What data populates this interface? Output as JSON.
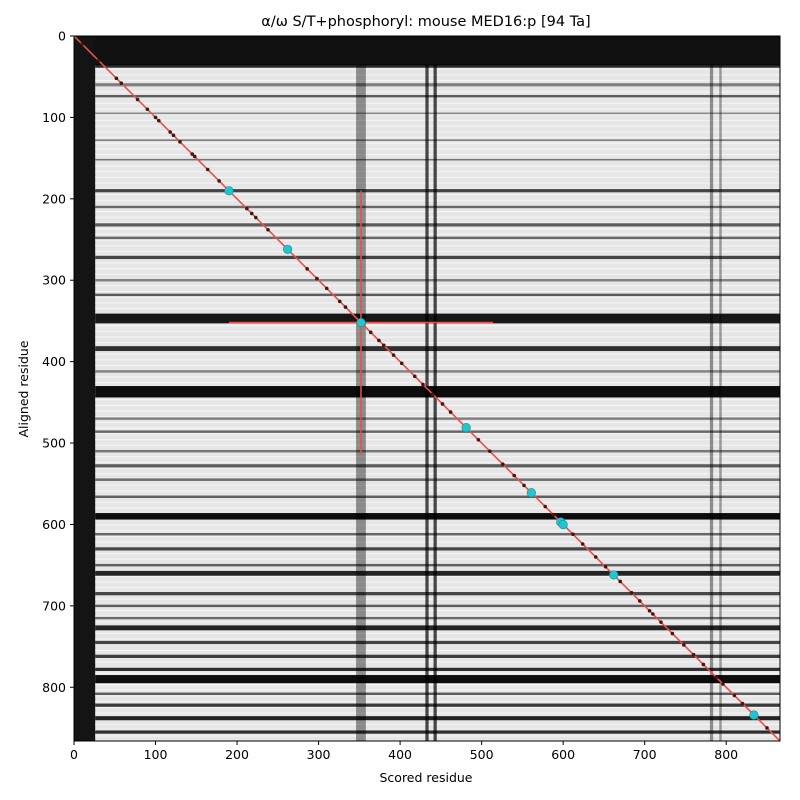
{
  "chart_data": {
    "type": "heatmap",
    "title": "α/ω S/T+phosphoryl: mouse MED16:p [94 Ta]",
    "xlabel": "Scored residue",
    "ylabel": "Aligned residue",
    "xlim": [
      0,
      866
    ],
    "ylim": [
      866,
      0
    ],
    "x_ticks": [
      0,
      100,
      200,
      300,
      400,
      500,
      600,
      700,
      800
    ],
    "y_ticks": [
      0,
      100,
      200,
      300,
      400,
      500,
      600,
      700,
      800
    ],
    "grid": false,
    "colormap": "greys (white = high score, black = low score)",
    "dark_rows": [
      {
        "y": 37,
        "w": 4,
        "s": 0.8
      },
      {
        "y": 60,
        "w": 4,
        "s": 0.45
      },
      {
        "y": 74,
        "w": 3,
        "s": 0.6
      },
      {
        "y": 95,
        "w": 2,
        "s": 0.4
      },
      {
        "y": 128,
        "w": 2,
        "s": 0.45
      },
      {
        "y": 152,
        "w": 2,
        "s": 0.5
      },
      {
        "y": 190,
        "w": 4,
        "s": 0.7
      },
      {
        "y": 210,
        "w": 3,
        "s": 0.55
      },
      {
        "y": 232,
        "w": 4,
        "s": 0.6
      },
      {
        "y": 248,
        "w": 3,
        "s": 0.55
      },
      {
        "y": 272,
        "w": 4,
        "s": 0.7
      },
      {
        "y": 300,
        "w": 3,
        "s": 0.45
      },
      {
        "y": 318,
        "w": 3,
        "s": 0.6
      },
      {
        "y": 347,
        "w": 12,
        "s": 0.9
      },
      {
        "y": 384,
        "w": 6,
        "s": 0.8
      },
      {
        "y": 412,
        "w": 3,
        "s": 0.45
      },
      {
        "y": 437,
        "w": 14,
        "s": 0.95
      },
      {
        "y": 470,
        "w": 3,
        "s": 0.45
      },
      {
        "y": 486,
        "w": 3,
        "s": 0.55
      },
      {
        "y": 510,
        "w": 3,
        "s": 0.5
      },
      {
        "y": 528,
        "w": 4,
        "s": 0.6
      },
      {
        "y": 545,
        "w": 3,
        "s": 0.55
      },
      {
        "y": 566,
        "w": 3,
        "s": 0.6
      },
      {
        "y": 590,
        "w": 8,
        "s": 0.95
      },
      {
        "y": 612,
        "w": 3,
        "s": 0.55
      },
      {
        "y": 630,
        "w": 4,
        "s": 0.7
      },
      {
        "y": 650,
        "w": 3,
        "s": 0.6
      },
      {
        "y": 660,
        "w": 6,
        "s": 0.85
      },
      {
        "y": 685,
        "w": 4,
        "s": 0.7
      },
      {
        "y": 700,
        "w": 3,
        "s": 0.6
      },
      {
        "y": 715,
        "w": 3,
        "s": 0.55
      },
      {
        "y": 727,
        "w": 6,
        "s": 0.85
      },
      {
        "y": 745,
        "w": 4,
        "s": 0.7
      },
      {
        "y": 762,
        "w": 4,
        "s": 0.75
      },
      {
        "y": 778,
        "w": 4,
        "s": 0.8
      },
      {
        "y": 790,
        "w": 10,
        "s": 0.95
      },
      {
        "y": 808,
        "w": 3,
        "s": 0.6
      },
      {
        "y": 822,
        "w": 4,
        "s": 0.75
      },
      {
        "y": 838,
        "w": 5,
        "s": 0.85
      },
      {
        "y": 855,
        "w": 4,
        "s": 0.8
      }
    ],
    "dark_cols": [
      {
        "x": 352,
        "w": 12,
        "s": 0.4
      },
      {
        "x": 433,
        "w": 4,
        "s": 0.7
      },
      {
        "x": 443,
        "w": 4,
        "s": 0.7
      },
      {
        "x": 782,
        "w": 4,
        "s": 0.4
      },
      {
        "x": 793,
        "w": 3,
        "s": 0.35
      }
    ],
    "diagonal_markers": [
      10,
      30,
      52,
      58,
      78,
      90,
      100,
      104,
      118,
      122,
      130,
      145,
      148,
      164,
      178,
      212,
      218,
      223,
      238,
      286,
      298,
      310,
      326,
      333,
      364,
      374,
      380,
      392,
      402,
      418,
      428,
      440,
      452,
      462,
      496,
      510,
      526,
      540,
      552,
      578,
      588,
      612,
      624,
      640,
      652,
      670,
      684,
      694,
      706,
      710,
      720,
      734,
      748,
      760,
      772,
      788,
      796,
      810,
      820,
      850
    ],
    "highlight_points": [
      190,
      262,
      352,
      481,
      561,
      597,
      600,
      662,
      834
    ],
    "focus_residue": 352,
    "crosshair_extent": [
      190,
      514
    ],
    "colors": {
      "diagonal": "#e8504a",
      "crosshair": "#e8504a",
      "highlight": "#22c4cf",
      "marker": "#4a1414"
    }
  }
}
